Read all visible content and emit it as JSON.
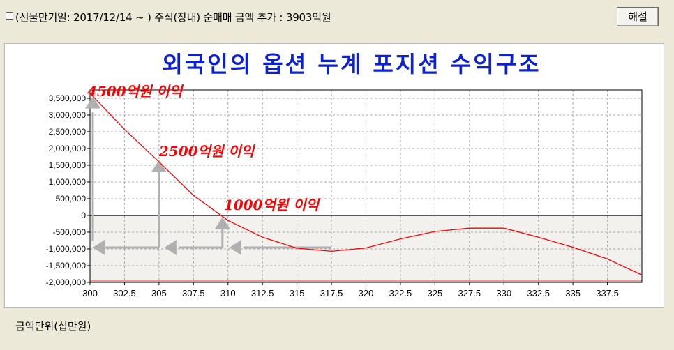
{
  "header": {
    "checkbox_label": "(선물만기일: 2017/12/14 ~ ) 주식(장내) 순매매 금액 추가 : 3903억원",
    "help_button": "해설"
  },
  "footer": {
    "unit_label": "금액단위(십만원)"
  },
  "colors": {
    "title": "#0a1fd6",
    "line": "#ff0000",
    "annotation": "#ff0000",
    "arrow": "#b0b0b0",
    "grid": "#a8a8a8",
    "axis": "#000000",
    "loss_fill": "#f2f1ee"
  },
  "chart_data": {
    "type": "line",
    "title": "외국인의 옵션 누계 포지션 수익구조",
    "xlabel": "",
    "ylabel": "",
    "xlim": [
      300,
      340
    ],
    "ylim": [
      -2000000,
      3750000
    ],
    "xticks": [
      "300",
      "302.5",
      "305",
      "307.5",
      "310",
      "312.5",
      "315",
      "317.5",
      "320",
      "322.5",
      "325",
      "327.5",
      "330",
      "332.5",
      "335",
      "337.5"
    ],
    "yticks": [
      "3,500,000",
      "3,000,000",
      "2,500,000",
      "2,000,000",
      "1,500,000",
      "1,000,000",
      "500,000",
      "0",
      "-500,000",
      "-1,000,000",
      "-1,500,000",
      "-2,000,000"
    ],
    "ytick_values": [
      3500000,
      3000000,
      2500000,
      2000000,
      1500000,
      1000000,
      500000,
      0,
      -500000,
      -1000000,
      -1500000,
      -2000000
    ],
    "grid": true,
    "series": [
      {
        "x": [
          300,
          302.5,
          305,
          307.5,
          310,
          312.5,
          315,
          317.5,
          320,
          322.5,
          325,
          327.5,
          330,
          332.5,
          335,
          337.5,
          340
        ],
        "y": [
          3650000,
          2570000,
          1600000,
          600000,
          -150000,
          -650000,
          -980000,
          -1070000,
          -970000,
          -700000,
          -480000,
          -380000,
          -380000,
          -650000,
          -950000,
          -1300000,
          -1780000
        ]
      }
    ],
    "annotations": [
      {
        "text": "4500억원 이익",
        "x": 300,
        "y": 3650000
      },
      {
        "text": "2500억원 이익",
        "x": 305,
        "y": 1600000
      },
      {
        "text": "1000억원 이익",
        "x": 309.7,
        "y": 0
      }
    ]
  }
}
